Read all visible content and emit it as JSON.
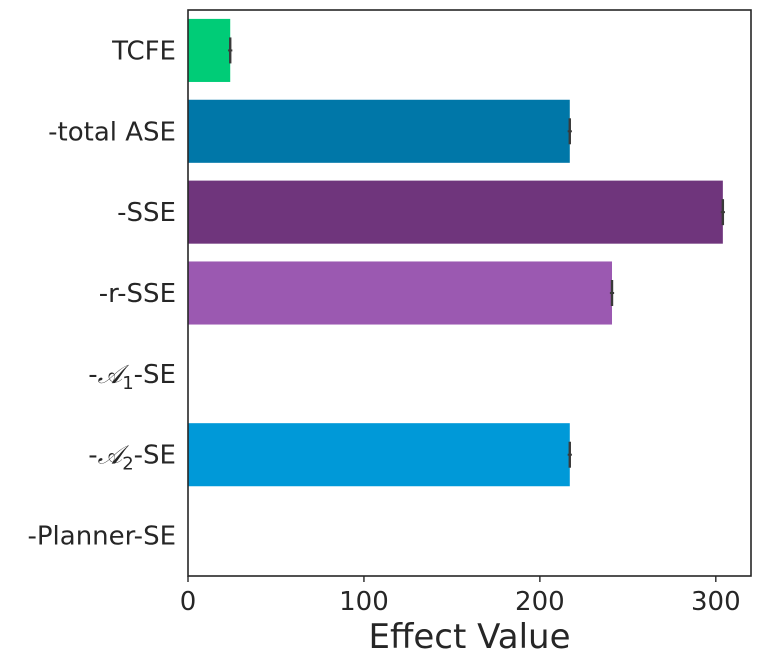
{
  "chart_data": {
    "type": "bar",
    "orientation": "horizontal",
    "title": "",
    "xlabel": "Effect Value",
    "ylabel": "",
    "xlim": [
      0,
      320
    ],
    "xticks": [
      0,
      100,
      200,
      300
    ],
    "xtick_labels": [
      "0",
      "100",
      "200",
      "300"
    ],
    "grid": false,
    "categories": [
      {
        "pre": "TCFE",
        "sym": "",
        "sub": "",
        "post": ""
      },
      {
        "pre": "-total ASE",
        "sym": "",
        "sub": "",
        "post": ""
      },
      {
        "pre": "-SSE",
        "sym": "",
        "sub": "",
        "post": ""
      },
      {
        "pre": "-r-SSE",
        "sym": "",
        "sub": "",
        "post": ""
      },
      {
        "pre": "-",
        "sym": "𝒜",
        "sub": "1",
        "post": "-SE"
      },
      {
        "pre": "-",
        "sym": "𝒜",
        "sub": "2",
        "post": "-SE"
      },
      {
        "pre": "-Planner-SE",
        "sym": "",
        "sub": "",
        "post": ""
      }
    ],
    "values": [
      24,
      217,
      304,
      241,
      0,
      217,
      0
    ],
    "errors": [
      1.2,
      1.2,
      1.2,
      1.2,
      0,
      1.2,
      0
    ],
    "colors": [
      "#00cc77",
      "#0077a8",
      "#6f357c",
      "#9b59b1",
      "#00aaaa",
      "#0099d8",
      "#888888"
    ]
  }
}
